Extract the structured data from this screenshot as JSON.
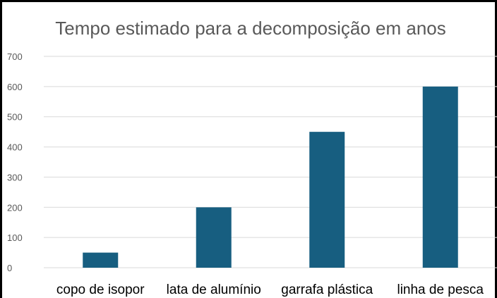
{
  "chart_data": {
    "type": "bar",
    "title": "Tempo estimado para a decomposição em anos",
    "categories": [
      "copo de isopor",
      "lata de alumínio",
      "garrafa plástica",
      "linha de pesca"
    ],
    "values": [
      50,
      200,
      450,
      600
    ],
    "ylim": [
      0,
      700
    ],
    "yticks": [
      0,
      100,
      200,
      300,
      400,
      500,
      600,
      700
    ],
    "xlabel": "",
    "ylabel": "",
    "grid": true,
    "legend": "none",
    "bar_color": "#175e80",
    "grid_color": "#d9d9d9"
  }
}
